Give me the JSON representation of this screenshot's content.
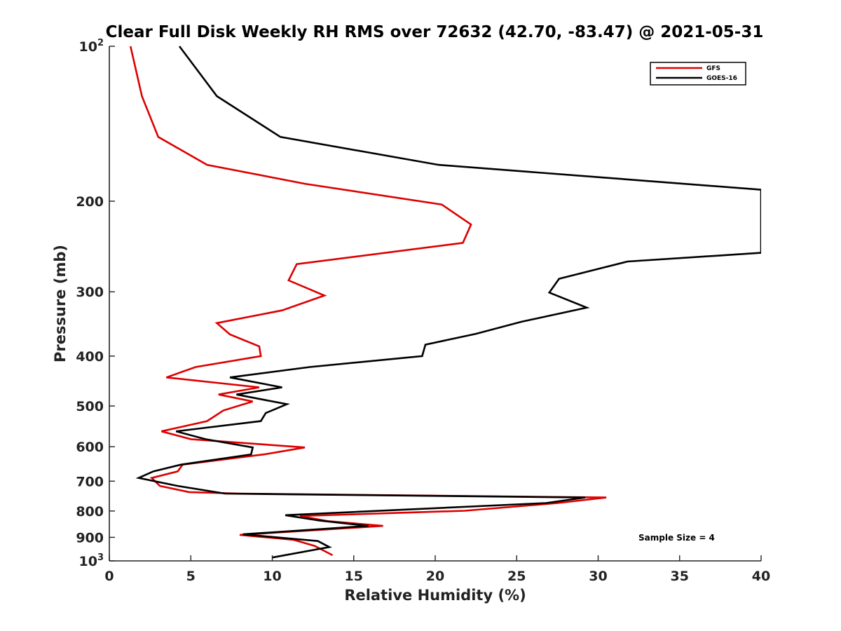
{
  "chart_data": {
    "type": "line",
    "title": "Clear Full Disk Weekly RH RMS over 72632 (42.70, -83.47) @ 2021-05-31",
    "xlabel": "Relative Humidity (%)",
    "ylabel": "Pressure (mb)",
    "xlim": [
      0,
      40
    ],
    "ylim": [
      100,
      1000
    ],
    "y_scale": "log",
    "y_reversed": true,
    "x_ticks": [
      "0",
      "5",
      "10",
      "15",
      "20",
      "25",
      "30",
      "35",
      "40"
    ],
    "y_ticks": [
      {
        "value": 100,
        "label": "10",
        "sup": "2"
      },
      {
        "value": 200,
        "label": "200"
      },
      {
        "value": 300,
        "label": "300"
      },
      {
        "value": 400,
        "label": "400"
      },
      {
        "value": 500,
        "label": "500"
      },
      {
        "value": 600,
        "label": "600"
      },
      {
        "value": 700,
        "label": "700"
      },
      {
        "value": 800,
        "label": "800"
      },
      {
        "value": 900,
        "label": "900"
      },
      {
        "value": 1000,
        "label": "10",
        "sup": "3"
      }
    ],
    "grid": false,
    "legend_position": "top-right",
    "annotation": "Sample Size = 4",
    "series": [
      {
        "name": "GFS",
        "color": "#dd0000",
        "points": [
          [
            1.3,
            100
          ],
          [
            2.0,
            125
          ],
          [
            3.0,
            150
          ],
          [
            6.0,
            170
          ],
          [
            12.0,
            185
          ],
          [
            20.4,
            203
          ],
          [
            22.2,
            222
          ],
          [
            21.7,
            241
          ],
          [
            11.5,
            265
          ],
          [
            11.0,
            285
          ],
          [
            13.2,
            305
          ],
          [
            10.6,
            326
          ],
          [
            6.6,
            345
          ],
          [
            7.4,
            363
          ],
          [
            9.2,
            383
          ],
          [
            9.3,
            400
          ],
          [
            5.3,
            420
          ],
          [
            3.5,
            440
          ],
          [
            9.2,
            460
          ],
          [
            6.7,
            475
          ],
          [
            8.8,
            490
          ],
          [
            7.0,
            510
          ],
          [
            6.0,
            535
          ],
          [
            3.2,
            560
          ],
          [
            5.0,
            580
          ],
          [
            12.0,
            602
          ],
          [
            9.5,
            621
          ],
          [
            4.5,
            650
          ],
          [
            4.2,
            670
          ],
          [
            2.6,
            690
          ],
          [
            3.1,
            715
          ],
          [
            4.9,
            735
          ],
          [
            8.0,
            740
          ],
          [
            30.5,
            753
          ],
          [
            27.5,
            772
          ],
          [
            21.8,
            799
          ],
          [
            11.7,
            818
          ],
          [
            13.4,
            837
          ],
          [
            16.8,
            855
          ],
          [
            8.0,
            890
          ],
          [
            11.3,
            910
          ],
          [
            12.6,
            935
          ],
          [
            13.7,
            975
          ]
        ]
      },
      {
        "name": "GOES-16",
        "color": "#000000",
        "points": [
          [
            4.3,
            100
          ],
          [
            6.6,
            125
          ],
          [
            10.5,
            150
          ],
          [
            20.2,
            170
          ],
          [
            40.0,
            190
          ],
          [
            40.0,
            252
          ],
          [
            31.8,
            262
          ],
          [
            27.6,
            283
          ],
          [
            27.0,
            301
          ],
          [
            29.3,
            322
          ],
          [
            25.3,
            343
          ],
          [
            22.5,
            362
          ],
          [
            19.4,
            380
          ],
          [
            19.2,
            400
          ],
          [
            12.3,
            420
          ],
          [
            7.4,
            440
          ],
          [
            10.6,
            460
          ],
          [
            7.8,
            475
          ],
          [
            10.9,
            496
          ],
          [
            9.6,
            516
          ],
          [
            9.3,
            535
          ],
          [
            4.1,
            560
          ],
          [
            5.9,
            580
          ],
          [
            8.8,
            602
          ],
          [
            8.7,
            621
          ],
          [
            4.4,
            650
          ],
          [
            2.7,
            670
          ],
          [
            1.8,
            690
          ],
          [
            4.2,
            715
          ],
          [
            7.1,
            740
          ],
          [
            29.2,
            753
          ],
          [
            26.8,
            772
          ],
          [
            10.8,
            815
          ],
          [
            12.9,
            835
          ],
          [
            15.9,
            855
          ],
          [
            8.2,
            888
          ],
          [
            12.8,
            915
          ],
          [
            13.5,
            940
          ],
          [
            10.0,
            985
          ]
        ]
      }
    ]
  }
}
